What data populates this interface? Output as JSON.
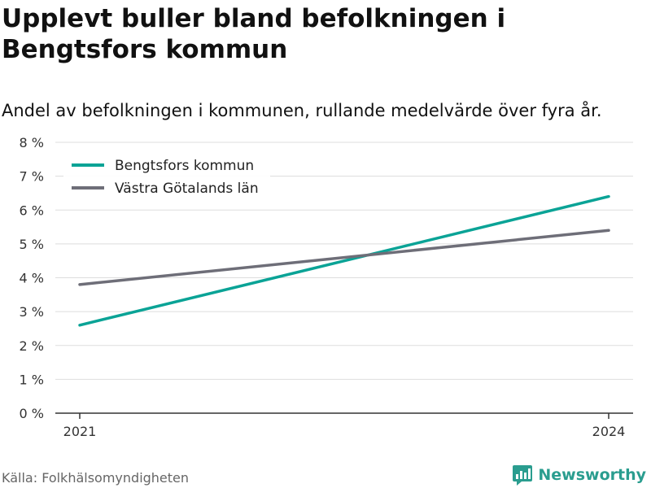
{
  "header": {
    "title": "Upplevt buller bland befolkningen i Bengtsfors kommun",
    "subtitle": "Andel av befolkningen i kommunen, rullande medelvärde över fyra år."
  },
  "footer": {
    "source": "Källa: Folkhälsomyndigheten",
    "brand": "Newsworthy"
  },
  "colors": {
    "series_1": "#0aa396",
    "series_2": "#6e6e78",
    "brand": "#2a9d8f"
  },
  "chart_data": {
    "type": "line",
    "title": "Upplevt buller bland befolkningen i Bengtsfors kommun",
    "subtitle": "Andel av befolkningen i kommunen, rullande medelvärde över fyra år.",
    "x": [
      2021,
      2024
    ],
    "x_tick_labels": [
      "2021",
      "2024"
    ],
    "y_ticks": [
      0,
      1,
      2,
      3,
      4,
      5,
      6,
      7,
      8
    ],
    "y_tick_labels": [
      "0 %",
      "1 %",
      "2 %",
      "3 %",
      "4 %",
      "5 %",
      "6 %",
      "7 %",
      "8 %"
    ],
    "ylim": [
      0,
      8
    ],
    "grid": true,
    "legend_position": "top-left",
    "series": [
      {
        "name": "Bengtsfors kommun",
        "color": "#0aa396",
        "values": [
          2.6,
          6.4
        ]
      },
      {
        "name": "Västra Götalands län",
        "color": "#6e6e78",
        "values": [
          3.8,
          5.4
        ]
      }
    ]
  }
}
